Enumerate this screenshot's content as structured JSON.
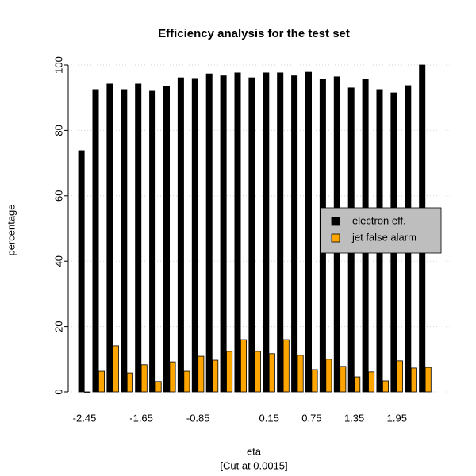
{
  "chart_data": {
    "type": "bar",
    "title": "Efficiency analysis for the test set",
    "xlabel": "eta",
    "subtitle": "[Cut at 0.0015]",
    "ylabel": "percentage",
    "categories": [
      "-2.45",
      null,
      null,
      null,
      "-1.65",
      null,
      null,
      null,
      "-0.85",
      null,
      null,
      null,
      null,
      "0.15",
      null,
      null,
      "0.75",
      null,
      null,
      "1.35",
      null,
      null,
      "1.95",
      null,
      null
    ],
    "series": [
      {
        "name": "electron eff.",
        "color": "#000000",
        "values": [
          73.8,
          92.5,
          94.2,
          92.5,
          94.2,
          92.0,
          93.4,
          96.1,
          95.9,
          97.3,
          96.7,
          97.6,
          96.1,
          97.6,
          97.6,
          96.7,
          97.8,
          95.6,
          96.4,
          93.0,
          95.6,
          92.5,
          91.5,
          93.7,
          100
        ]
      },
      {
        "name": "jet false alarm",
        "color": "#ffa500",
        "values": [
          0,
          6.3,
          14.1,
          5.8,
          8.3,
          3.2,
          9.2,
          6.3,
          10.9,
          9.7,
          12.4,
          16.0,
          12.4,
          11.7,
          16.0,
          11.2,
          6.8,
          10.0,
          7.8,
          4.6,
          6.1,
          3.4,
          9.5,
          7.3,
          7.5
        ]
      }
    ],
    "ylim": [
      0,
      100
    ],
    "yticks": [
      0,
      20,
      40,
      60,
      80,
      100
    ],
    "grid": true,
    "legend": "right"
  }
}
